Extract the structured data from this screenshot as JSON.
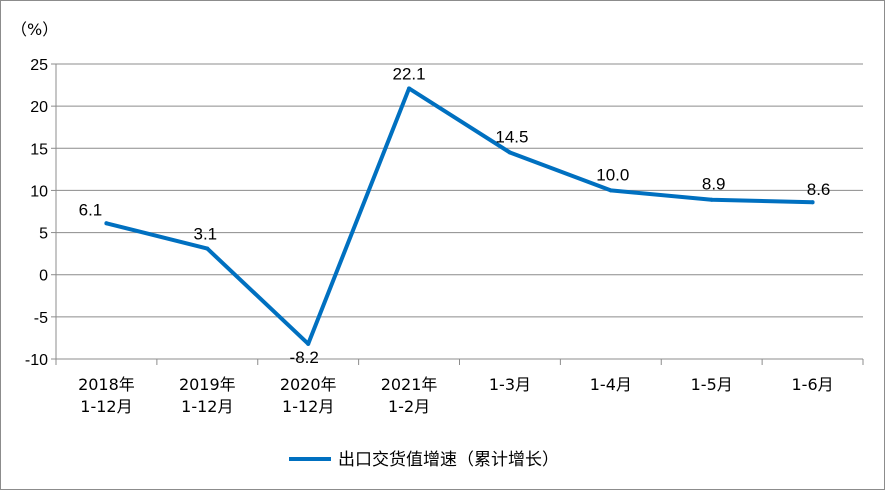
{
  "chart_data": {
    "type": "line",
    "unit_label": "（%）",
    "categories": [
      [
        "2018年",
        "1-12月"
      ],
      [
        "2019年",
        "1-12月"
      ],
      [
        "2020年",
        "1-12月"
      ],
      [
        "2021年",
        "1-2月"
      ],
      [
        "1-3月"
      ],
      [
        "1-4月"
      ],
      [
        "1-5月"
      ],
      [
        "1-6月"
      ]
    ],
    "series": [
      {
        "name": "出口交货值增速（累计增长）",
        "values": [
          6.1,
          3.1,
          -8.2,
          22.1,
          14.5,
          10.0,
          8.9,
          8.6
        ],
        "labels": [
          "6.1",
          "3.1",
          "-8.2",
          "22.1",
          "14.5",
          "10.0",
          "8.9",
          "8.6"
        ],
        "color": "#0070c0"
      }
    ],
    "ylim": [
      -10,
      25
    ],
    "yticks": [
      -10,
      -5,
      0,
      5,
      10,
      15,
      20,
      25
    ],
    "grid": true,
    "legend_position": "bottom"
  }
}
